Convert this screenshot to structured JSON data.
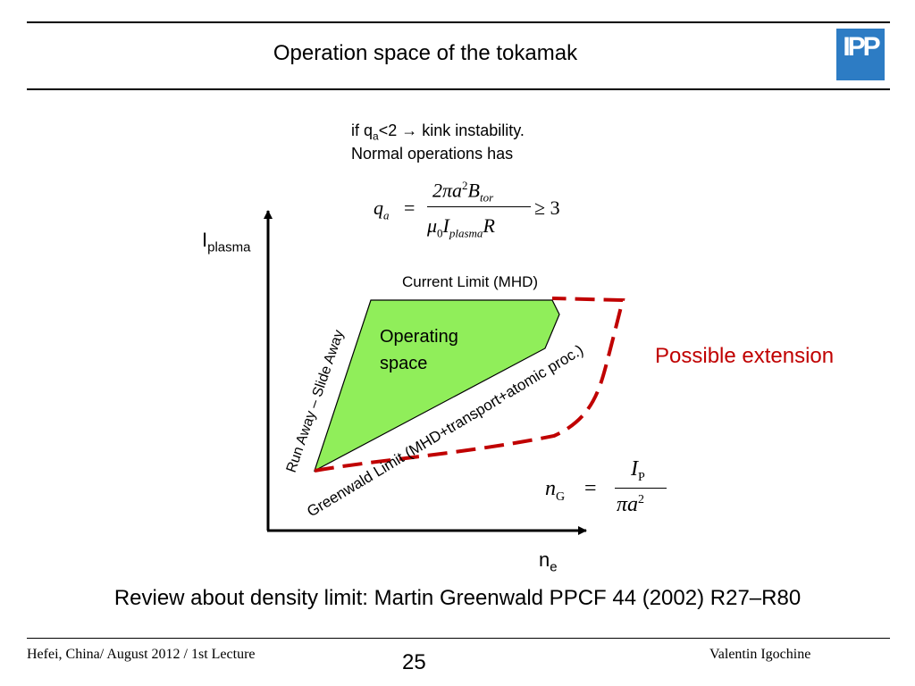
{
  "header": {
    "title": "Operation space of the tokamak",
    "logo_text": "IPP",
    "logo_color": "#2d7cc4"
  },
  "note": {
    "line1_prefix": "if q",
    "line1_sub": "a",
    "line1_suffix": "<2 →  kink instability.",
    "line2": "Normal operations has"
  },
  "formula_q": {
    "lhs": "q",
    "lhs_sub": "a",
    "eq": "=",
    "num": "2πa",
    "num_sup": "2",
    "num_B": "B",
    "num_sub": "tor",
    "den_mu": "μ",
    "den_mu_sub": "0",
    "den_I": "I",
    "den_I_sub": "plasma",
    "den_R": "R",
    "rhs": "≥ 3"
  },
  "diagram": {
    "y_axis_label": "I",
    "y_axis_sub": "plasma",
    "x_axis_label": "n",
    "x_axis_sub": "e",
    "current_limit": "Current Limit (MHD)",
    "runaway_label": "Run Away – Slide Away",
    "greenwald_label": "Greenwald Limit (MHD+transport+atomic proc.)",
    "operating_space": "Operating space",
    "possible_extension": "Possible extension",
    "operating_color": "#90ee5a",
    "extension_color": "#c00000"
  },
  "formula_g": {
    "lhs": "n",
    "lhs_sub": "G",
    "eq": "=",
    "num": "I",
    "num_sub": "P",
    "den": "πa",
    "den_sup": "2"
  },
  "review": "Review about density limit: Martin Greenwald PPCF 44 (2002) R27–R80",
  "footer": {
    "left": "Hefei, China/ August 2012 / 1st Lecture",
    "page": "25",
    "right": "Valentin Igochine"
  }
}
